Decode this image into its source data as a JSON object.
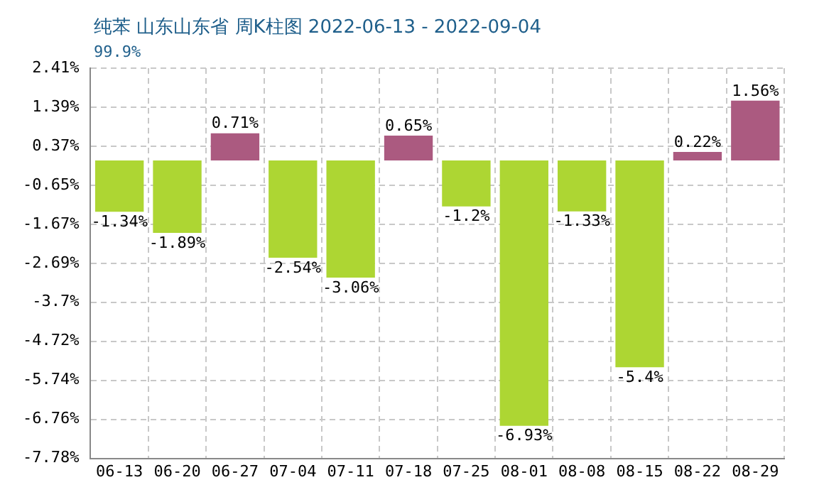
{
  "chart_data": {
    "type": "bar",
    "title": "纯苯 山东山东省 周K柱图 2022-06-13 - 2022-09-04",
    "subtitle": "99.9%",
    "categories": [
      "06-13",
      "06-20",
      "06-27",
      "07-04",
      "07-11",
      "07-18",
      "07-25",
      "08-01",
      "08-08",
      "08-15",
      "08-22",
      "08-29"
    ],
    "values": [
      -1.34,
      -1.89,
      0.71,
      -2.54,
      -3.06,
      0.65,
      -1.2,
      -6.93,
      -1.33,
      -5.4,
      0.22,
      1.56
    ],
    "value_labels": [
      "-1.34%",
      "-1.89%",
      "0.71%",
      "-2.54%",
      "-3.06%",
      "0.65%",
      "-1.2%",
      "-6.93%",
      "-1.33%",
      "-5.4%",
      "0.22%",
      "1.56%"
    ],
    "colors": [
      "#add633",
      "#add633",
      "#ab5a80",
      "#add633",
      "#add633",
      "#ab5a80",
      "#add633",
      "#add633",
      "#add633",
      "#add633",
      "#ab5a80",
      "#ab5a80"
    ],
    "ylim": [
      -7.78,
      2.41
    ],
    "yticks": [
      {
        "value": 2.41,
        "label": "2.41%"
      },
      {
        "value": 1.39,
        "label": "1.39%"
      },
      {
        "value": 0.37,
        "label": "0.37%"
      },
      {
        "value": -0.65,
        "label": "-0.65%"
      },
      {
        "value": -1.67,
        "label": "-1.67%"
      },
      {
        "value": -2.69,
        "label": "-2.69%"
      },
      {
        "value": -3.7,
        "label": "-3.7%"
      },
      {
        "value": -4.72,
        "label": "-4.72%"
      },
      {
        "value": -5.74,
        "label": "-5.74%"
      },
      {
        "value": -6.76,
        "label": "-6.76%"
      },
      {
        "value": -7.78,
        "label": "-7.78%"
      }
    ],
    "grid": true,
    "legend": false
  }
}
